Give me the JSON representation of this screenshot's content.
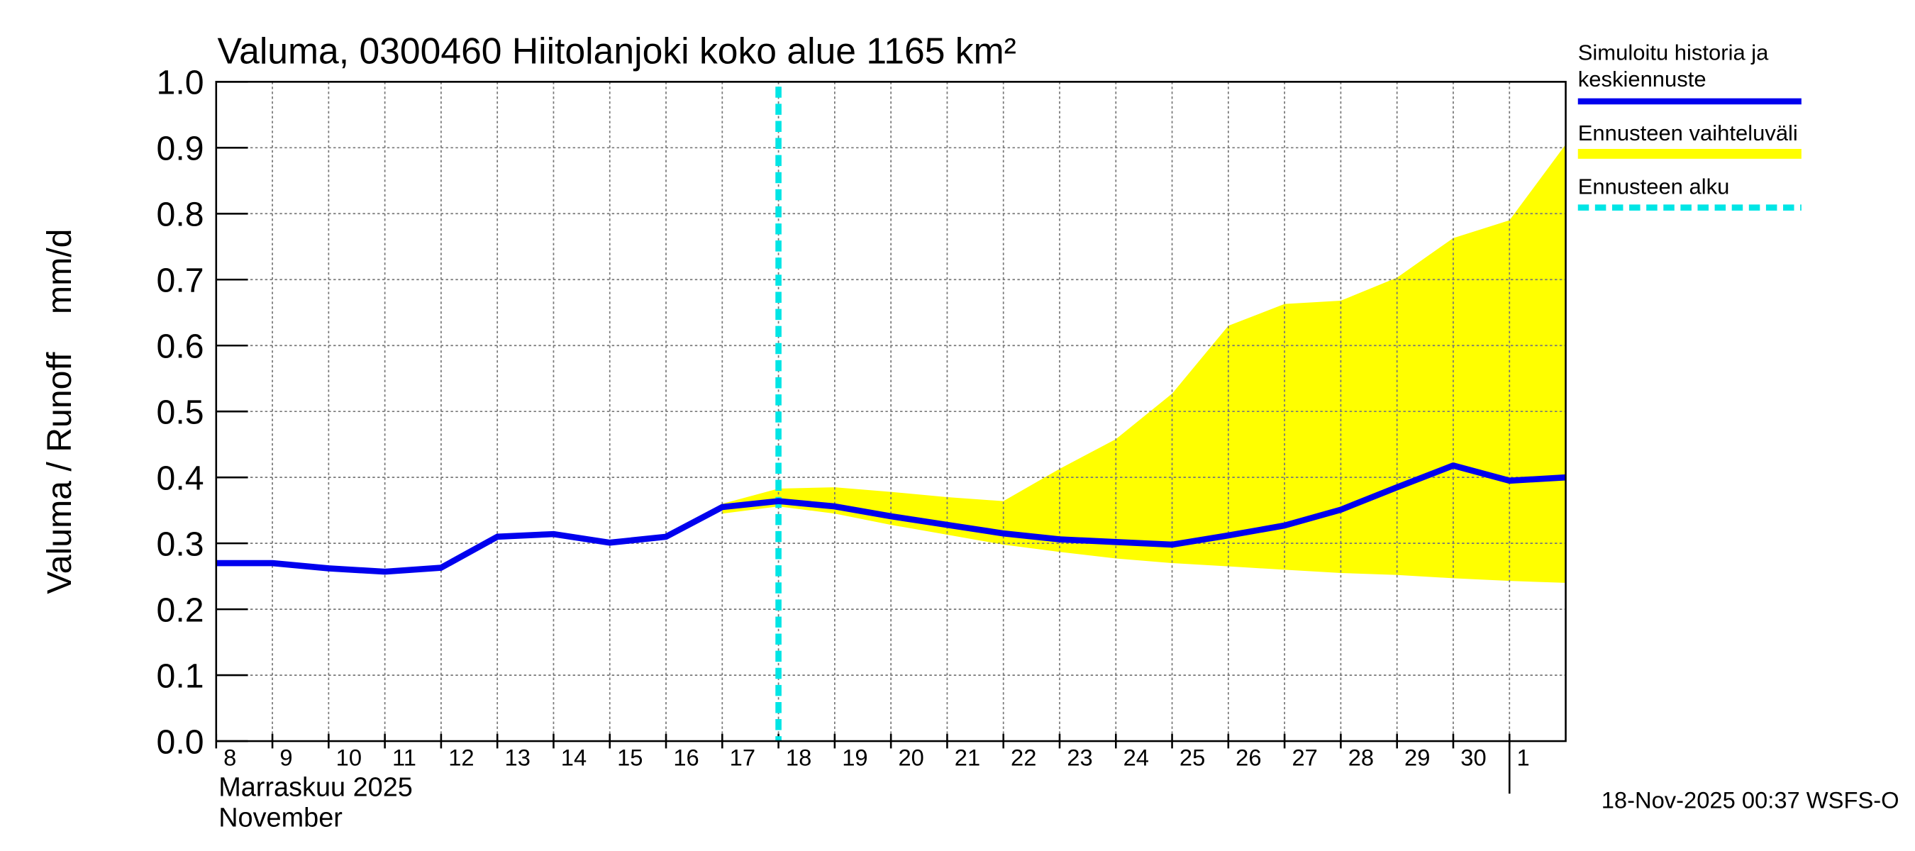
{
  "chart_data": {
    "type": "line",
    "title": "Valuma, 0300460 Hiitolanjoki koko alue 1165 km²",
    "y_label": "Valuma / Runoff    mm/d",
    "x_label_lines": [
      "Marraskuu 2025",
      "November"
    ],
    "footer": "18-Nov-2025 00:37 WSFS-O",
    "x": [
      "2025-11-08",
      "2025-11-09",
      "2025-11-10",
      "2025-11-11",
      "2025-11-12",
      "2025-11-13",
      "2025-11-14",
      "2025-11-15",
      "2025-11-16",
      "2025-11-17",
      "2025-11-18",
      "2025-11-19",
      "2025-11-20",
      "2025-11-21",
      "2025-11-22",
      "2025-11-23",
      "2025-11-24",
      "2025-11-25",
      "2025-11-26",
      "2025-11-27",
      "2025-11-28",
      "2025-11-29",
      "2025-11-30",
      "2025-12-01",
      "2025-12-02"
    ],
    "series": [
      {
        "name": "Simuloitu historia ja\nkeskiennuste",
        "color": "#0000ee",
        "values": [
          0.27,
          0.27,
          0.262,
          0.257,
          0.263,
          0.31,
          0.314,
          0.301,
          0.31,
          0.355,
          0.364,
          0.356,
          0.341,
          0.328,
          0.315,
          0.306,
          0.302,
          0.298,
          0.312,
          0.327,
          0.351,
          0.385,
          0.418,
          0.395,
          0.4
        ]
      }
    ],
    "band": {
      "name": "Ennusteen vaihteluväli",
      "color": "#ffff00",
      "upper": [
        null,
        null,
        null,
        null,
        null,
        null,
        null,
        null,
        null,
        0.36,
        0.383,
        0.385,
        0.378,
        0.37,
        0.364,
        0.413,
        0.458,
        0.527,
        0.63,
        0.663,
        0.668,
        0.703,
        0.763,
        0.79,
        0.905
      ],
      "lower": [
        null,
        null,
        null,
        null,
        null,
        null,
        null,
        null,
        null,
        0.345,
        0.356,
        0.345,
        0.328,
        0.313,
        0.298,
        0.287,
        0.277,
        0.27,
        0.265,
        0.26,
        0.255,
        0.252,
        0.247,
        0.243,
        0.24
      ]
    },
    "forecast_start": {
      "name": "Ennusteen alku",
      "x": "2025-11-18",
      "color": "#00e5e5"
    },
    "xlim": [
      "2025-11-08",
      "2025-12-02"
    ],
    "xticks": [
      {
        "value": "2025-11-08",
        "label": "8"
      },
      {
        "value": "2025-11-09",
        "label": "9"
      },
      {
        "value": "2025-11-10",
        "label": "10"
      },
      {
        "value": "2025-11-11",
        "label": "11"
      },
      {
        "value": "2025-11-12",
        "label": "12"
      },
      {
        "value": "2025-11-13",
        "label": "13"
      },
      {
        "value": "2025-11-14",
        "label": "14"
      },
      {
        "value": "2025-11-15",
        "label": "15"
      },
      {
        "value": "2025-11-16",
        "label": "16"
      },
      {
        "value": "2025-11-17",
        "label": "17"
      },
      {
        "value": "2025-11-18",
        "label": "18"
      },
      {
        "value": "2025-11-19",
        "label": "19"
      },
      {
        "value": "2025-11-20",
        "label": "20"
      },
      {
        "value": "2025-11-21",
        "label": "21"
      },
      {
        "value": "2025-11-22",
        "label": "22"
      },
      {
        "value": "2025-11-23",
        "label": "23"
      },
      {
        "value": "2025-11-24",
        "label": "24"
      },
      {
        "value": "2025-11-25",
        "label": "25"
      },
      {
        "value": "2025-11-26",
        "label": "26"
      },
      {
        "value": "2025-11-27",
        "label": "27"
      },
      {
        "value": "2025-11-28",
        "label": "28"
      },
      {
        "value": "2025-11-29",
        "label": "29"
      },
      {
        "value": "2025-11-30",
        "label": "30"
      },
      {
        "value": "2025-12-01",
        "label": "1"
      }
    ],
    "month_tick": "2025-12-01",
    "ylim": [
      0,
      1
    ],
    "yticks": [
      {
        "value": 0,
        "label": "0.0"
      },
      0.1,
      0.2,
      0.3,
      0.4,
      0.5,
      0.6,
      0.7,
      0.8,
      0.9,
      {
        "value": 1,
        "label": "1.0"
      }
    ],
    "grid": true
  }
}
